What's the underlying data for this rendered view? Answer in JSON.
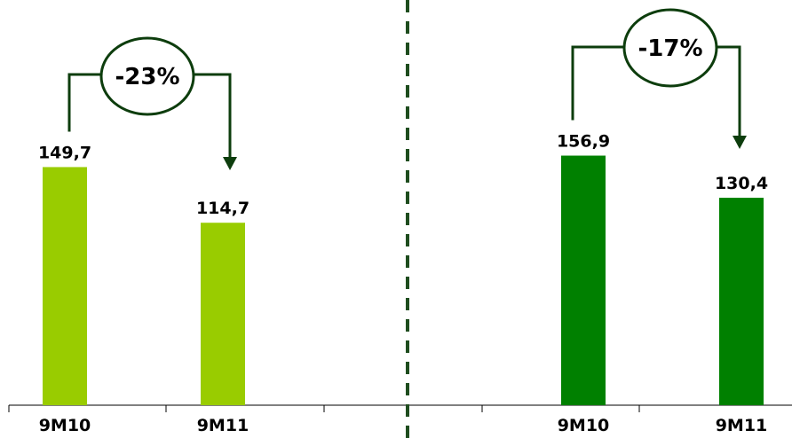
{
  "chart_data": [
    {
      "type": "bar",
      "categories": [
        "9M10",
        "9M11"
      ],
      "values": [
        149.7,
        114.7
      ],
      "value_labels": [
        "149,7",
        "114,7"
      ],
      "change_label": "-23%",
      "bar_color": "#99cc00"
    },
    {
      "type": "bar",
      "categories": [
        "9M10",
        "9M11"
      ],
      "values": [
        156.9,
        130.4
      ],
      "value_labels": [
        "156,9",
        "130,4"
      ],
      "change_label": "-17%",
      "bar_color": "#008000"
    }
  ],
  "colors": {
    "arrow": "#0d3d0d",
    "divider": "#1f4d1f",
    "axis": "#000000"
  }
}
